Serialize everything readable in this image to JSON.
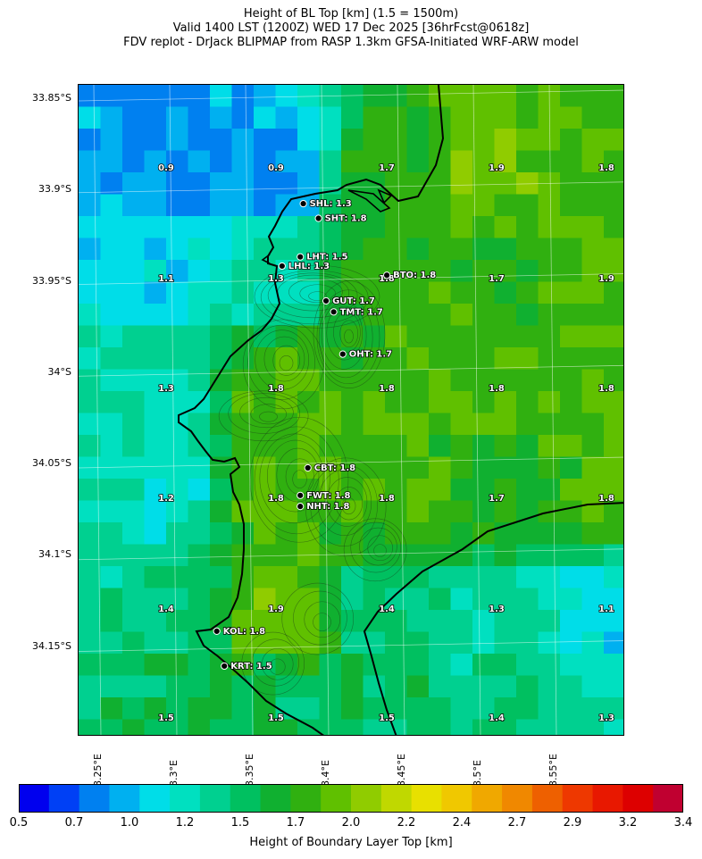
{
  "title": {
    "line1": "Height of BL Top [km] (1.5 = 1500m)",
    "line2": "Valid 1400 LST (1200Z) WED 17 Dec 2025 [36hrFcst@0618z]",
    "line3": "FDV replot - DrJack BLIPMAP from RASP 1.3km GFSA-Initiated WRF-ARW model"
  },
  "axes": {
    "lat_labels": [
      "33.85°S",
      "33.9°S",
      "33.95°S",
      "34°S",
      "34.05°S",
      "34.1°S",
      "34.15°S"
    ],
    "lon_labels": [
      "18.25°E",
      "18.3°E",
      "18.35°E",
      "18.4°E",
      "18.45°E",
      "18.5°E",
      "18.55°E"
    ]
  },
  "colorbar": {
    "label": "Height of Boundary Layer Top [km]",
    "ticks": [
      "0.5",
      "0.7",
      "1.0",
      "1.2",
      "1.5",
      "1.7",
      "2.0",
      "2.2",
      "2.4",
      "2.7",
      "2.9",
      "3.2",
      "3.4"
    ],
    "colors": [
      "#0000ee",
      "#0040f5",
      "#0080f0",
      "#00b0f0",
      "#00dde8",
      "#00e0c0",
      "#00d090",
      "#00c060",
      "#10b030",
      "#30b010",
      "#60c000",
      "#90cc00",
      "#c0d800",
      "#e8e000",
      "#f0c800",
      "#f0a800",
      "#f08800",
      "#ee6000",
      "#ee3800",
      "#e81800",
      "#dd0000",
      "#c00030"
    ],
    "cb_min": 0.5,
    "cb_max": 3.4
  },
  "grid_values": {
    "rows": [
      [
        "0.9",
        "0.9",
        "1.7",
        "1.9",
        "1.8"
      ],
      [
        "1.1",
        "1.3",
        "1.8",
        "1.7",
        "1.9"
      ],
      [
        "1.3",
        "1.8",
        "1.8",
        "1.8",
        "1.8"
      ],
      [
        "1.2",
        "1.8",
        "1.8",
        "1.7",
        "1.8"
      ],
      [
        "1.4",
        "1.9",
        "1.4",
        "1.3",
        "1.1"
      ],
      [
        "1.5",
        "1.5",
        "1.5",
        "1.4",
        "1.3"
      ]
    ]
  },
  "sites": [
    {
      "label": "SHL: 1.3",
      "lat": -33.906,
      "lon": 18.388
    },
    {
      "label": "SHT: 1.8",
      "lat": -33.914,
      "lon": 18.398
    },
    {
      "label": "LHT: 1.5",
      "lat": -33.935,
      "lon": 18.386
    },
    {
      "label": "LHL: 1.3",
      "lat": -33.94,
      "lon": 18.374
    },
    {
      "label": "BTO: 1.8",
      "lat": -33.945,
      "lon": 18.443
    },
    {
      "label": "GUT: 1.7",
      "lat": -33.959,
      "lon": 18.403
    },
    {
      "label": "TMT: 1.7",
      "lat": -33.965,
      "lon": 18.408
    },
    {
      "label": "OHT: 1.7",
      "lat": -33.988,
      "lon": 18.414
    },
    {
      "label": "CBT: 1.8",
      "lat": -34.05,
      "lon": 18.391
    },
    {
      "label": "FWT: 1.8",
      "lat": -34.065,
      "lon": 18.386
    },
    {
      "label": "NHT: 1.8",
      "lat": -34.071,
      "lon": 18.386
    },
    {
      "label": "KOL: 1.8",
      "lat": -34.139,
      "lon": 18.331
    },
    {
      "label": "KRT: 1.5",
      "lat": -34.158,
      "lon": 18.336
    }
  ]
}
